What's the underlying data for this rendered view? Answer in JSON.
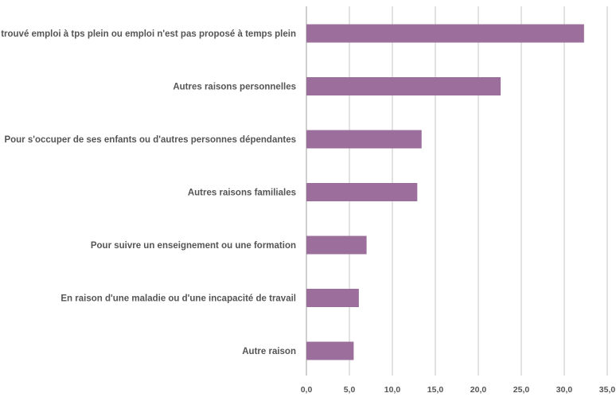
{
  "chart_data": {
    "type": "bar",
    "orientation": "horizontal",
    "categories": [
      "Pas trouvé emploi à tps plein ou emploi n'est pas proposé à temps plein",
      "Autres raisons personnelles",
      "Pour s'occuper de ses enfants ou d'autres personnes dépendantes",
      "Autres raisons familiales",
      "Pour suivre un enseignement ou une formation",
      "En raison d'une maladie ou d'une incapacité de travail",
      "Autre raison"
    ],
    "values": [
      32.3,
      22.6,
      13.4,
      12.9,
      7.0,
      6.1,
      5.5
    ],
    "xlim": [
      0,
      35
    ],
    "xticks": [
      "0,0",
      "5,0",
      "10,0",
      "15,0",
      "20,0",
      "25,0",
      "30,0",
      "35,0"
    ],
    "grid": true,
    "bar_color": "#9c6e9b"
  }
}
